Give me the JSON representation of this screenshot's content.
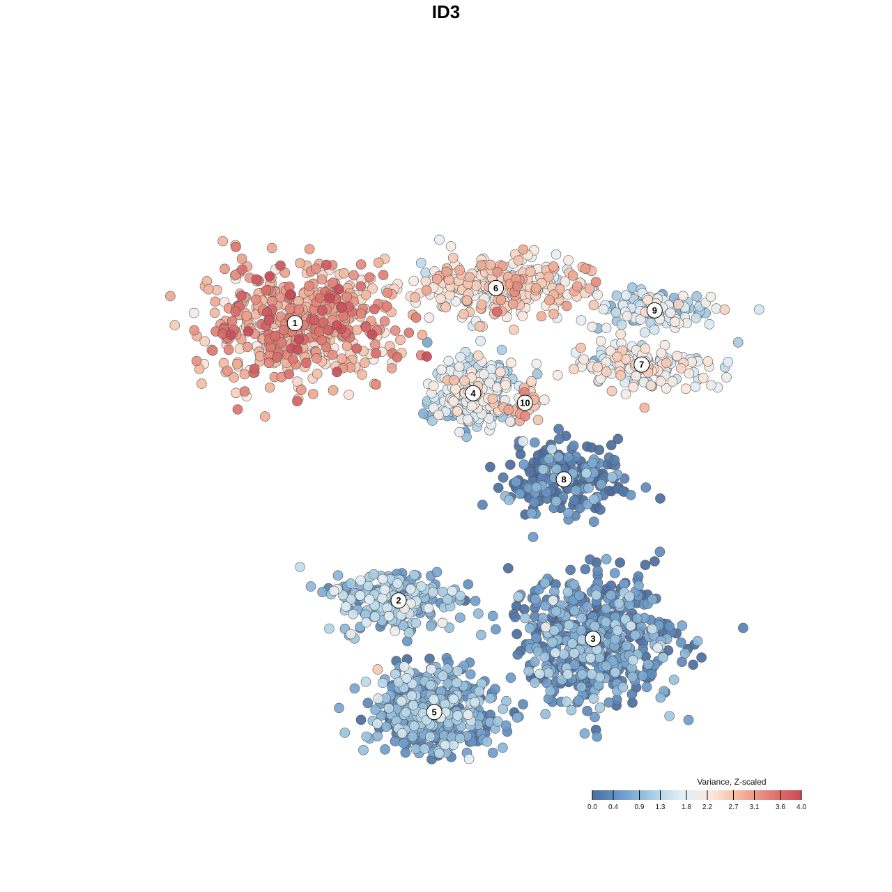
{
  "chart_data": {
    "type": "scatter",
    "title": "ID3",
    "xlabel": "",
    "ylabel": "",
    "grid": false,
    "legend": {
      "title": "Variance, Z-scaled",
      "placement": "bottom-right",
      "range": [
        0.0,
        4.0
      ],
      "ticks": [
        "0.0",
        "0.4",
        "0.9",
        "1.3",
        "1.8",
        "2.2",
        "2.7",
        "3.1",
        "3.6",
        "4.0"
      ],
      "palette": [
        "#4a6d9e",
        "#6b9ccc",
        "#a7cde3",
        "#e3eff6",
        "#fbe7dc",
        "#f2b39a",
        "#e07b72",
        "#c94a57"
      ]
    },
    "clusters": [
      {
        "id": "1",
        "label": "1",
        "center": [
          -52,
          38
        ],
        "spread": [
          15,
          9
        ],
        "value": 2.95
      },
      {
        "id": "2",
        "label": "2",
        "center": [
          -20,
          -49
        ],
        "spread": [
          9,
          5
        ],
        "value": 1.0
      },
      {
        "id": "3",
        "label": "3",
        "center": [
          40,
          -61
        ],
        "spread": [
          13,
          10
        ],
        "value": 0.4
      },
      {
        "id": "4",
        "label": "4",
        "center": [
          3,
          16
        ],
        "spread": [
          6,
          5
        ],
        "value": 1.5
      },
      {
        "id": "5",
        "label": "5",
        "center": [
          -9,
          -84
        ],
        "spread": [
          10,
          7
        ],
        "value": 0.7
      },
      {
        "id": "6",
        "label": "6",
        "center": [
          10,
          49
        ],
        "spread": [
          14,
          5
        ],
        "value": 2.35
      },
      {
        "id": "7",
        "label": "7",
        "center": [
          55,
          25
        ],
        "spread": [
          12,
          4
        ],
        "value": 1.9
      },
      {
        "id": "8",
        "label": "8",
        "center": [
          31,
          -11
        ],
        "spread": [
          9,
          6
        ],
        "value": 0.15
      },
      {
        "id": "9",
        "label": "9",
        "center": [
          59,
          42
        ],
        "spread": [
          9,
          3
        ],
        "value": 1.45
      },
      {
        "id": "10",
        "label": "10",
        "center": [
          19,
          13
        ],
        "spread": [
          3,
          3
        ],
        "value": 2.6
      }
    ],
    "xlim": [
      -100,
      100
    ],
    "ylim": [
      -100,
      100
    ]
  }
}
